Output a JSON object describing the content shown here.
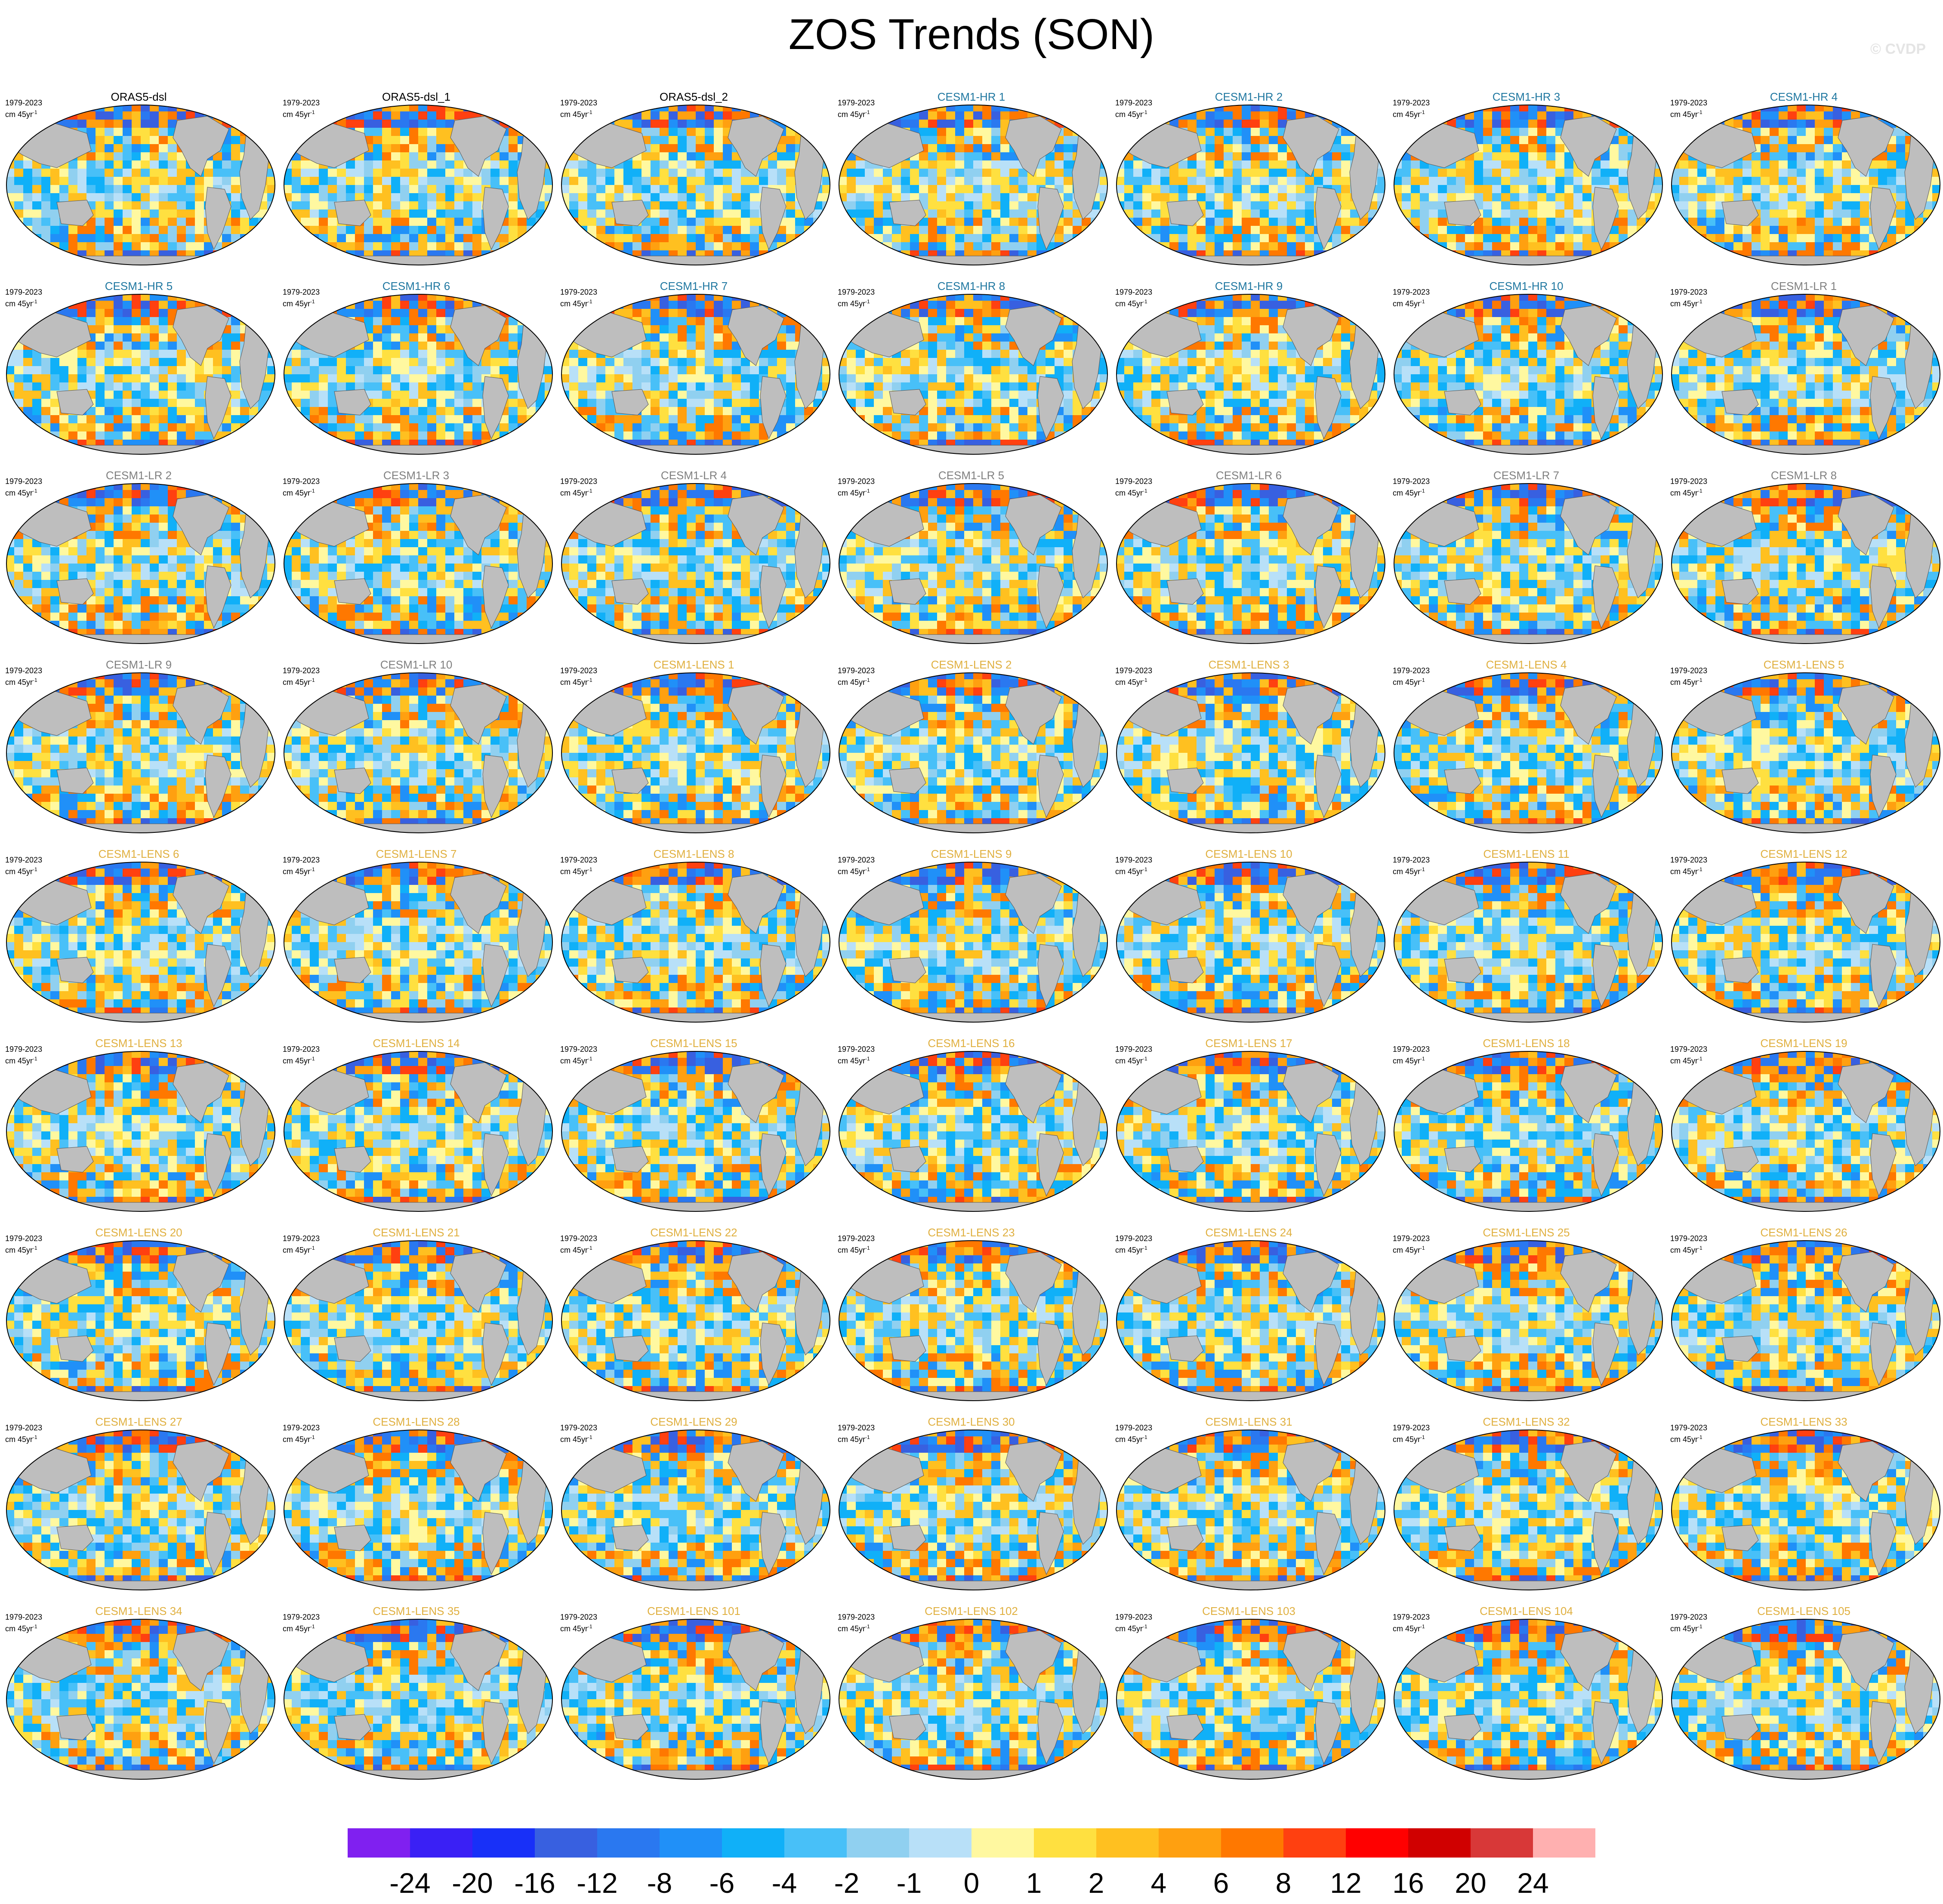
{
  "figure": {
    "title": "ZOS Trends (SON)",
    "watermark": "© CVDP",
    "period": "1979-2023",
    "units_prefix": "cm 45yr",
    "units_exp": "-1",
    "land_color": "#bebebe"
  },
  "panels": [
    {
      "label": "ORAS5-dsl",
      "label_color": "#000000"
    },
    {
      "label": "ORAS5-dsl_1",
      "label_color": "#000000"
    },
    {
      "label": "ORAS5-dsl_2",
      "label_color": "#000000"
    },
    {
      "label": "CESM1-HR 1",
      "label_color": "#1f77a0"
    },
    {
      "label": "CESM1-HR 2",
      "label_color": "#1f77a0"
    },
    {
      "label": "CESM1-HR 3",
      "label_color": "#1f77a0"
    },
    {
      "label": "CESM1-HR 4",
      "label_color": "#1f77a0"
    },
    {
      "label": "CESM1-HR 5",
      "label_color": "#1f77a0"
    },
    {
      "label": "CESM1-HR 6",
      "label_color": "#1f77a0"
    },
    {
      "label": "CESM1-HR 7",
      "label_color": "#1f77a0"
    },
    {
      "label": "CESM1-HR 8",
      "label_color": "#1f77a0"
    },
    {
      "label": "CESM1-HR 9",
      "label_color": "#1f77a0"
    },
    {
      "label": "CESM1-HR 10",
      "label_color": "#1f77a0"
    },
    {
      "label": "CESM1-LR 1",
      "label_color": "#808080"
    },
    {
      "label": "CESM1-LR 2",
      "label_color": "#808080"
    },
    {
      "label": "CESM1-LR 3",
      "label_color": "#808080"
    },
    {
      "label": "CESM1-LR 4",
      "label_color": "#808080"
    },
    {
      "label": "CESM1-LR 5",
      "label_color": "#808080"
    },
    {
      "label": "CESM1-LR 6",
      "label_color": "#808080"
    },
    {
      "label": "CESM1-LR 7",
      "label_color": "#808080"
    },
    {
      "label": "CESM1-LR 8",
      "label_color": "#808080"
    },
    {
      "label": "CESM1-LR 9",
      "label_color": "#808080"
    },
    {
      "label": "CESM1-LR 10",
      "label_color": "#808080"
    },
    {
      "label": "CESM1-LENS 1",
      "label_color": "#e0b040"
    },
    {
      "label": "CESM1-LENS 2",
      "label_color": "#e0b040"
    },
    {
      "label": "CESM1-LENS 3",
      "label_color": "#e0b040"
    },
    {
      "label": "CESM1-LENS 4",
      "label_color": "#e0b040"
    },
    {
      "label": "CESM1-LENS 5",
      "label_color": "#e0b040"
    },
    {
      "label": "CESM1-LENS 6",
      "label_color": "#e0b040"
    },
    {
      "label": "CESM1-LENS 7",
      "label_color": "#e0b040"
    },
    {
      "label": "CESM1-LENS 8",
      "label_color": "#e0b040"
    },
    {
      "label": "CESM1-LENS 9",
      "label_color": "#e0b040"
    },
    {
      "label": "CESM1-LENS 10",
      "label_color": "#e0b040"
    },
    {
      "label": "CESM1-LENS 11",
      "label_color": "#e0b040"
    },
    {
      "label": "CESM1-LENS 12",
      "label_color": "#e0b040"
    },
    {
      "label": "CESM1-LENS 13",
      "label_color": "#e0b040"
    },
    {
      "label": "CESM1-LENS 14",
      "label_color": "#e0b040"
    },
    {
      "label": "CESM1-LENS 15",
      "label_color": "#e0b040"
    },
    {
      "label": "CESM1-LENS 16",
      "label_color": "#e0b040"
    },
    {
      "label": "CESM1-LENS 17",
      "label_color": "#e0b040"
    },
    {
      "label": "CESM1-LENS 18",
      "label_color": "#e0b040"
    },
    {
      "label": "CESM1-LENS 19",
      "label_color": "#e0b040"
    },
    {
      "label": "CESM1-LENS 20",
      "label_color": "#e0b040"
    },
    {
      "label": "CESM1-LENS 21",
      "label_color": "#e0b040"
    },
    {
      "label": "CESM1-LENS 22",
      "label_color": "#e0b040"
    },
    {
      "label": "CESM1-LENS 23",
      "label_color": "#e0b040"
    },
    {
      "label": "CESM1-LENS 24",
      "label_color": "#e0b040"
    },
    {
      "label": "CESM1-LENS 25",
      "label_color": "#e0b040"
    },
    {
      "label": "CESM1-LENS 26",
      "label_color": "#e0b040"
    },
    {
      "label": "CESM1-LENS 27",
      "label_color": "#e0b040"
    },
    {
      "label": "CESM1-LENS 28",
      "label_color": "#e0b040"
    },
    {
      "label": "CESM1-LENS 29",
      "label_color": "#e0b040"
    },
    {
      "label": "CESM1-LENS 30",
      "label_color": "#e0b040"
    },
    {
      "label": "CESM1-LENS 31",
      "label_color": "#e0b040"
    },
    {
      "label": "CESM1-LENS 32",
      "label_color": "#e0b040"
    },
    {
      "label": "CESM1-LENS 33",
      "label_color": "#e0b040"
    },
    {
      "label": "CESM1-LENS 34",
      "label_color": "#e0b040"
    },
    {
      "label": "CESM1-LENS 35",
      "label_color": "#e0b040"
    },
    {
      "label": "CESM1-LENS 101",
      "label_color": "#e0b040"
    },
    {
      "label": "CESM1-LENS 102",
      "label_color": "#e0b040"
    },
    {
      "label": "CESM1-LENS 103",
      "label_color": "#e0b040"
    },
    {
      "label": "CESM1-LENS 104",
      "label_color": "#e0b040"
    },
    {
      "label": "CESM1-LENS 105",
      "label_color": "#e0b040"
    }
  ],
  "chart_data": {
    "type": "heatmap",
    "title": "ZOS Trends (SON)",
    "projection": "robinson-like global map",
    "layout": "7 columns x 9 rows of map panels",
    "colorbar": {
      "labels": [
        "-24",
        "-20",
        "-16",
        "-12",
        "-8",
        "-6",
        "-4",
        "-2",
        "-1",
        "0",
        "1",
        "2",
        "4",
        "6",
        "8",
        "12",
        "16",
        "20",
        "24"
      ],
      "colors": [
        "#8020f0",
        "#3a20f5",
        "#1830f8",
        "#3860e0",
        "#2a78f0",
        "#2090f8",
        "#10b0f8",
        "#48c0f8",
        "#90d0f0",
        "#b8e0f8",
        "#fff8a0",
        "#ffe040",
        "#ffc020",
        "#ffa010",
        "#ff7800",
        "#ff4010",
        "#ff0000",
        "#d00000",
        "#d83838",
        "#ffb0b0"
      ]
    }
  }
}
